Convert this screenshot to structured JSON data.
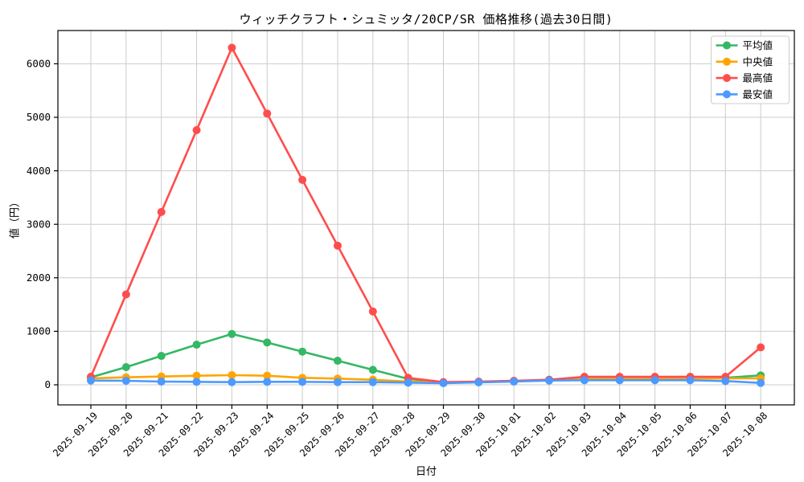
{
  "figure": {
    "background": "#ffffff",
    "grid_color": "#cccccc",
    "axis_color": "#000000",
    "tick_label_color": "#000000",
    "legend_border_color": "#cccccc",
    "legend_background": "#ffffff"
  },
  "chart_data": {
    "type": "line",
    "title": "ウィッチクラフト・シュミッタ/20CP/SR 価格推移(過去30日間)",
    "xlabel": "日付",
    "ylabel": "値（円）",
    "grid": true,
    "legend_position": "upper right",
    "ylim": [
      -375,
      6620
    ],
    "yticks": [
      0,
      1000,
      2000,
      3000,
      4000,
      5000,
      6000
    ],
    "x": [
      "2025-09-19",
      "2025-09-20",
      "2025-09-21",
      "2025-09-22",
      "2025-09-23",
      "2025-09-24",
      "2025-09-25",
      "2025-09-26",
      "2025-09-27",
      "2025-09-28",
      "2025-09-29",
      "2025-09-30",
      "2025-10-01",
      "2025-10-02",
      "2025-10-03",
      "2025-10-04",
      "2025-10-05",
      "2025-10-06",
      "2025-10-07",
      "2025-10-08"
    ],
    "series": [
      {
        "name": "平均値",
        "key": "average",
        "color": "#33b864",
        "values": [
          140,
          330,
          540,
          750,
          950,
          790,
          620,
          450,
          280,
          110,
          45,
          55,
          70,
          90,
          130,
          130,
          130,
          130,
          130,
          175
        ]
      },
      {
        "name": "中央値",
        "key": "median",
        "color": "#ffa502",
        "values": [
          120,
          140,
          155,
          170,
          180,
          170,
          130,
          115,
          95,
          60,
          40,
          50,
          65,
          85,
          120,
          120,
          120,
          120,
          120,
          120
        ]
      },
      {
        "name": "最高値",
        "key": "max",
        "color": "#ff4d4d",
        "values": [
          150,
          1690,
          3230,
          4760,
          6300,
          5070,
          3830,
          2600,
          1370,
          130,
          50,
          60,
          75,
          95,
          150,
          150,
          150,
          150,
          150,
          700
        ]
      },
      {
        "name": "最安値",
        "key": "min",
        "color": "#4c9aff",
        "values": [
          80,
          75,
          60,
          55,
          50,
          55,
          55,
          50,
          50,
          40,
          30,
          45,
          60,
          80,
          85,
          85,
          85,
          85,
          70,
          35
        ]
      }
    ]
  }
}
